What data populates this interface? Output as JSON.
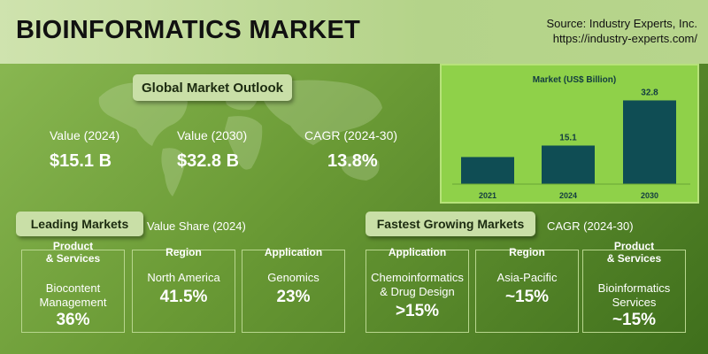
{
  "header": {
    "title": "BIOINFORMATICS MARKET",
    "source_line1": "Source: Industry Experts, Inc.",
    "source_line2": "https://industry-experts.com/"
  },
  "outlook": {
    "label": "Global Market Outlook",
    "kpis": [
      {
        "label": "Value (2024)",
        "value": "$15.1 B"
      },
      {
        "label": "Value (2030)",
        "value": "$32.8 B"
      },
      {
        "label": "CAGR (2024-30)",
        "value": "13.8%"
      }
    ]
  },
  "chart_data": {
    "type": "bar",
    "title": "Market (US$ Billion)",
    "categories": [
      "2021",
      "2024",
      "2030"
    ],
    "values": [
      null,
      15.1,
      32.8
    ],
    "estimated_values": [
      10.6,
      15.1,
      32.8
    ],
    "data_labels": [
      "",
      "15.1",
      "32.8"
    ],
    "ylim": [
      0,
      34
    ],
    "grid": false,
    "bar_color": "#0f4d54"
  },
  "leading": {
    "label": "Leading Markets",
    "note": "Value Share (2024)",
    "cards": [
      {
        "head": [
          "Product",
          "& Services"
        ],
        "label": [
          "Biocontent",
          "Management"
        ],
        "value": "36%"
      },
      {
        "head": [
          "Region"
        ],
        "label": [
          "North America"
        ],
        "value": "41.5%"
      },
      {
        "head": [
          "Application"
        ],
        "label": [
          "Genomics"
        ],
        "value": "23%"
      }
    ]
  },
  "fastest": {
    "label": "Fastest Growing Markets",
    "note": "CAGR (2024-30)",
    "cards": [
      {
        "head": [
          "Application"
        ],
        "label": [
          "Chemoinformatics",
          "& Drug Design"
        ],
        "value": ">15%"
      },
      {
        "head": [
          "Region"
        ],
        "label": [
          "Asia-Pacific"
        ],
        "value": "~15%"
      },
      {
        "head": [
          "Product",
          "& Services"
        ],
        "label": [
          "Bioinformatics",
          "Services"
        ],
        "value": "~15%"
      }
    ]
  },
  "colors": {
    "background": "#6a9a35",
    "header_band": "#c2dc9c",
    "chart_panel": "#8fd149",
    "bar": "#0f4d54",
    "pill": "#c9dfa7"
  }
}
